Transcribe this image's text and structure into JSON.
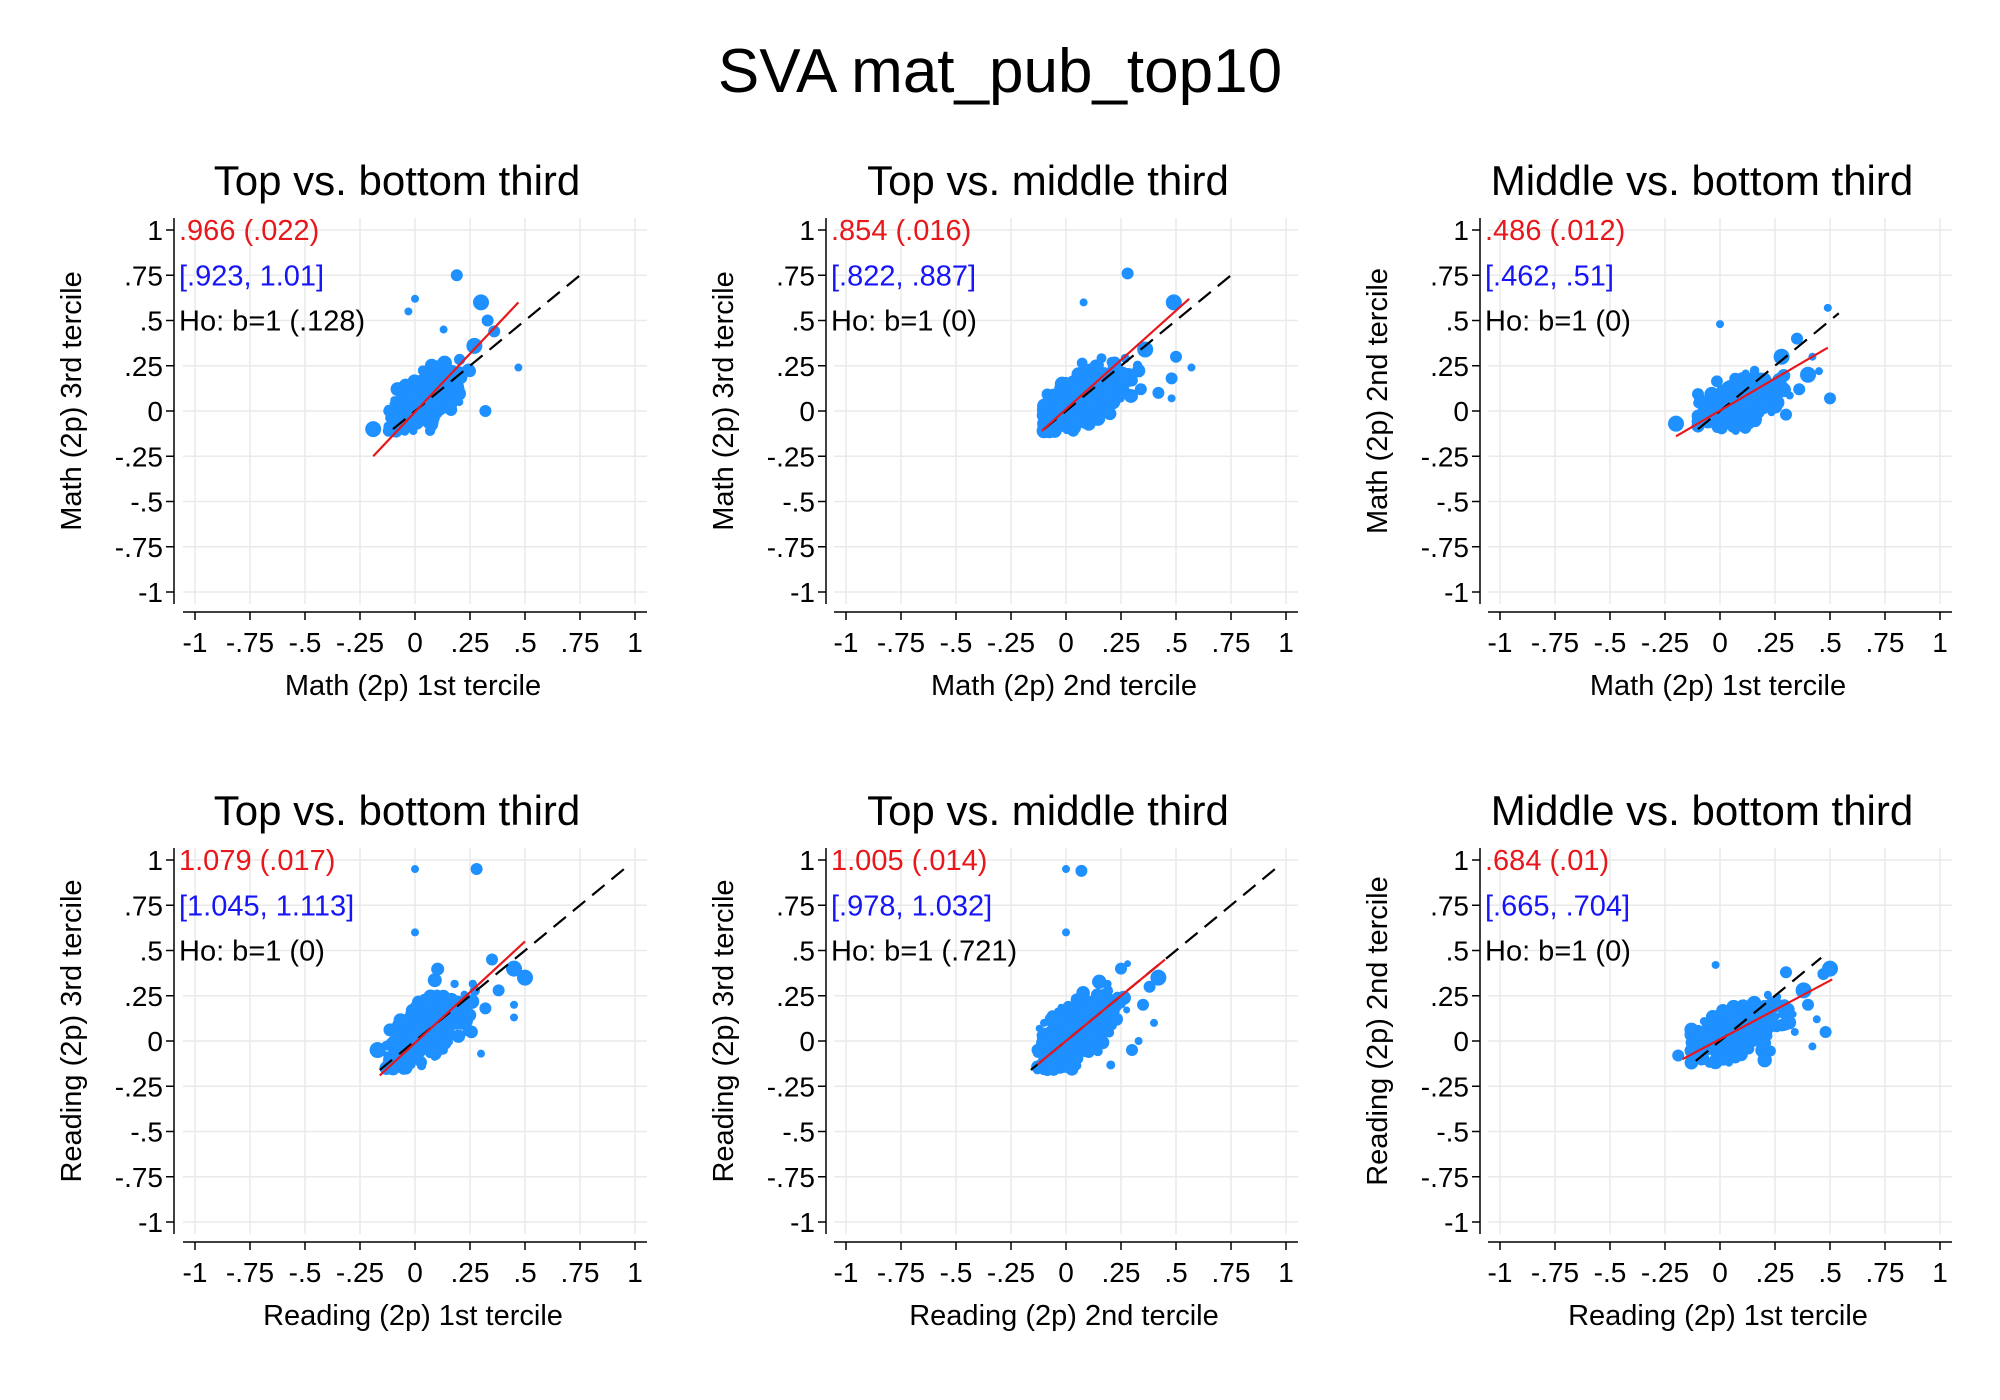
{
  "title": "SVA mat_pub_top10",
  "colors": {
    "points": "#1E90FF",
    "fit_line": "#E8171B",
    "reference_line": "#000000",
    "estimate_text": "#E8171B",
    "ci_text": "#1515F5",
    "test_text": "#000000",
    "grid": "#EAEAEA",
    "axis": "#000000"
  },
  "chart_data": [
    {
      "type": "scatter",
      "panel": "math-top-vs-bottom",
      "title": "Top vs. bottom third",
      "xlabel": "Math (2p) 1st tercile",
      "ylabel": "Math (2p) 3rd tercile",
      "xlim": [
        -1,
        1
      ],
      "ylim": [
        -1,
        1
      ],
      "ticks": [
        -1,
        -0.75,
        -0.5,
        -0.25,
        0,
        0.25,
        0.5,
        0.75,
        1
      ],
      "tick_labels": [
        "-1",
        "-.75",
        "-.5",
        "-.25",
        "0",
        ".25",
        ".5",
        ".75",
        "1"
      ],
      "grid": true,
      "estimate": ".966 (.022)",
      "ci": "[.923, 1.01]",
      "test": "Ho: b=1 (.128)",
      "slope": 0.966,
      "fit_line": {
        "x": [
          -0.19,
          0.47
        ],
        "y": [
          -0.25,
          0.6
        ]
      },
      "reference_line": {
        "x": [
          -0.1,
          0.76
        ]
      },
      "cloud": {
        "cx": 0.05,
        "cy": 0.07,
        "sx": 0.07,
        "sy": 0.08,
        "rho": 0.6,
        "n": 650,
        "xmin": -0.12,
        "xmax": 0.32,
        "ymin": -0.11,
        "ymax": 0.5
      },
      "outliers": [
        [
          -0.19,
          -0.1,
          3
        ],
        [
          0.19,
          0.75,
          2
        ],
        [
          0.3,
          0.6,
          3
        ],
        [
          0.47,
          0.24,
          1
        ],
        [
          0.32,
          0.0,
          2
        ],
        [
          0.27,
          0.36,
          3
        ],
        [
          0.36,
          0.44,
          2
        ],
        [
          -0.03,
          0.55,
          1
        ],
        [
          0.25,
          0.22,
          2
        ],
        [
          0.33,
          0.5,
          2
        ],
        [
          0.0,
          0.62,
          1
        ],
        [
          0.13,
          0.45,
          1
        ]
      ]
    },
    {
      "type": "scatter",
      "panel": "math-top-vs-middle",
      "title": "Top vs. middle third",
      "xlabel": "Math (2p) 2nd tercile",
      "ylabel": "Math (2p) 3rd tercile",
      "xlim": [
        -1,
        1
      ],
      "ylim": [
        -1,
        1
      ],
      "ticks": [
        -1,
        -0.75,
        -0.5,
        -0.25,
        0,
        0.25,
        0.5,
        0.75,
        1
      ],
      "tick_labels": [
        "-1",
        "-.75",
        "-.5",
        "-.25",
        "0",
        ".25",
        ".5",
        ".75",
        "1"
      ],
      "grid": true,
      "estimate": ".854 (.016)",
      "ci": "[.822, .887]",
      "test": "Ho: b=1 (0)",
      "slope": 0.854,
      "fit_line": {
        "x": [
          -0.11,
          0.56
        ],
        "y": [
          -0.11,
          0.62
        ]
      },
      "reference_line": {
        "x": [
          -0.1,
          0.76
        ]
      },
      "cloud": {
        "cx": 0.07,
        "cy": 0.06,
        "sx": 0.09,
        "sy": 0.08,
        "rho": 0.65,
        "n": 750,
        "xmin": -0.1,
        "xmax": 0.33,
        "ymin": -0.11,
        "ymax": 0.42
      },
      "outliers": [
        [
          0.28,
          0.76,
          2
        ],
        [
          0.49,
          0.6,
          3
        ],
        [
          0.57,
          0.24,
          1
        ],
        [
          0.5,
          0.3,
          2
        ],
        [
          0.48,
          0.18,
          2
        ],
        [
          0.36,
          0.34,
          3
        ],
        [
          0.42,
          0.1,
          2
        ],
        [
          0.08,
          0.6,
          1
        ],
        [
          0.48,
          0.07,
          1
        ],
        [
          0.34,
          0.12,
          2
        ],
        [
          0.27,
          0.1,
          1
        ],
        [
          0.25,
          0.22,
          1
        ]
      ]
    },
    {
      "type": "scatter",
      "panel": "math-middle-vs-bottom",
      "title": "Middle vs. bottom third",
      "xlabel": "Math (2p) 1st tercile",
      "ylabel": "Math (2p) 2nd tercile",
      "xlim": [
        -1,
        1
      ],
      "ylim": [
        -1,
        1
      ],
      "ticks": [
        -1,
        -0.75,
        -0.5,
        -0.25,
        0,
        0.25,
        0.5,
        0.75,
        1
      ],
      "tick_labels": [
        "-1",
        "-.75",
        "-.5",
        "-.25",
        "0",
        ".25",
        ".5",
        ".75",
        "1"
      ],
      "grid": true,
      "estimate": ".486 (.012)",
      "ci": "[.462, .51]",
      "test": "Ho: b=1 (0)",
      "slope": 0.486,
      "fit_line": {
        "x": [
          -0.2,
          0.49
        ],
        "y": [
          -0.14,
          0.35
        ]
      },
      "reference_line": {
        "x": [
          -0.1,
          0.54
        ]
      },
      "cloud": {
        "cx": 0.08,
        "cy": 0.04,
        "sx": 0.08,
        "sy": 0.06,
        "rho": 0.5,
        "n": 600,
        "xmin": -0.1,
        "xmax": 0.35,
        "ymin": -0.11,
        "ymax": 0.3
      },
      "outliers": [
        [
          -0.2,
          -0.07,
          3
        ],
        [
          0.35,
          0.4,
          2
        ],
        [
          0.49,
          0.57,
          1
        ],
        [
          0.5,
          0.07,
          2
        ],
        [
          0.4,
          0.2,
          3
        ],
        [
          0.28,
          0.3,
          3
        ],
        [
          0.36,
          0.12,
          2
        ],
        [
          0.45,
          0.22,
          1
        ],
        [
          0.0,
          0.48,
          1
        ],
        [
          0.42,
          0.3,
          1
        ],
        [
          0.3,
          -0.02,
          2
        ]
      ]
    },
    {
      "type": "scatter",
      "panel": "reading-top-vs-bottom",
      "title": "Top vs. bottom third",
      "xlabel": "Reading (2p) 1st tercile",
      "ylabel": "Reading (2p) 3rd tercile",
      "xlim": [
        -1,
        1
      ],
      "ylim": [
        -1,
        1
      ],
      "ticks": [
        -1,
        -0.75,
        -0.5,
        -0.25,
        0,
        0.25,
        0.5,
        0.75,
        1
      ],
      "tick_labels": [
        "-1",
        "-.75",
        "-.5",
        "-.25",
        "0",
        ".25",
        ".5",
        ".75",
        "1"
      ],
      "grid": true,
      "estimate": "1.079 (.017)",
      "ci": "[1.045, 1.113]",
      "test": "Ho: b=1 (0)",
      "slope": 1.079,
      "fit_line": {
        "x": [
          -0.16,
          0.5
        ],
        "y": [
          -0.19,
          0.55
        ]
      },
      "reference_line": {
        "x": [
          -0.16,
          0.96
        ]
      },
      "cloud": {
        "cx": 0.06,
        "cy": 0.07,
        "sx": 0.08,
        "sy": 0.09,
        "rho": 0.65,
        "n": 750,
        "xmin": -0.13,
        "xmax": 0.33,
        "ymin": -0.15,
        "ymax": 0.52
      },
      "outliers": [
        [
          0.28,
          0.95,
          2
        ],
        [
          0.0,
          0.95,
          1
        ],
        [
          -0.17,
          -0.05,
          3
        ],
        [
          0.5,
          0.35,
          3
        ],
        [
          0.45,
          0.4,
          3
        ],
        [
          0.45,
          0.2,
          1
        ],
        [
          0.32,
          0.18,
          2
        ],
        [
          0.38,
          0.28,
          2
        ],
        [
          0.3,
          -0.07,
          1
        ],
        [
          0.0,
          0.6,
          1
        ],
        [
          0.35,
          0.45,
          2
        ],
        [
          0.45,
          0.13,
          1
        ]
      ]
    },
    {
      "type": "scatter",
      "panel": "reading-top-vs-middle",
      "title": "Top vs. middle third",
      "xlabel": "Reading (2p) 2nd tercile",
      "ylabel": "Reading (2p) 3rd tercile",
      "xlim": [
        -1,
        1
      ],
      "ylim": [
        -1,
        1
      ],
      "ticks": [
        -1,
        -0.75,
        -0.5,
        -0.25,
        0,
        0.25,
        0.5,
        0.75,
        1
      ],
      "tick_labels": [
        "-1",
        "-.75",
        "-.5",
        "-.25",
        "0",
        ".25",
        ".5",
        ".75",
        "1"
      ],
      "grid": true,
      "estimate": "1.005 (.014)",
      "ci": "[.978, 1.032]",
      "test": "Ho: b=1 (.721)",
      "slope": 1.005,
      "fit_line": {
        "x": [
          -0.13,
          0.45
        ],
        "y": [
          -0.13,
          0.45
        ]
      },
      "reference_line": {
        "x": [
          -0.16,
          0.96
        ]
      },
      "cloud": {
        "cx": 0.05,
        "cy": 0.06,
        "sx": 0.08,
        "sy": 0.09,
        "rho": 0.65,
        "n": 700,
        "xmin": -0.13,
        "xmax": 0.3,
        "ymin": -0.16,
        "ymax": 0.48
      },
      "outliers": [
        [
          0.07,
          0.94,
          2
        ],
        [
          0.0,
          0.95,
          1
        ],
        [
          0.42,
          0.35,
          3
        ],
        [
          0.38,
          0.3,
          2
        ],
        [
          0.3,
          -0.05,
          2
        ],
        [
          0.35,
          0.2,
          2
        ],
        [
          0.4,
          0.1,
          1
        ],
        [
          0.25,
          0.4,
          2
        ],
        [
          0.0,
          0.6,
          1
        ],
        [
          0.33,
          0.0,
          1
        ],
        [
          -0.1,
          0.1,
          1
        ]
      ]
    },
    {
      "type": "scatter",
      "panel": "reading-middle-vs-bottom",
      "title": "Middle vs. bottom third",
      "xlabel": "Reading (2p) 1st tercile",
      "ylabel": "Reading (2p) 2nd tercile",
      "xlim": [
        -1,
        1
      ],
      "ylim": [
        -1,
        1
      ],
      "ticks": [
        -1,
        -0.75,
        -0.5,
        -0.25,
        0,
        0.25,
        0.5,
        0.75,
        1
      ],
      "tick_labels": [
        "-1",
        "-.75",
        "-.5",
        "-.25",
        "0",
        ".25",
        ".5",
        ".75",
        "1"
      ],
      "grid": true,
      "estimate": ".684 (.01)",
      "ci": "[.665, .704]",
      "test": "Ho: b=1 (0)",
      "slope": 0.684,
      "fit_line": {
        "x": [
          -0.17,
          0.51
        ],
        "y": [
          -0.1,
          0.34
        ]
      },
      "reference_line": {
        "x": [
          -0.11,
          0.46
        ]
      },
      "cloud": {
        "cx": 0.09,
        "cy": 0.06,
        "sx": 0.09,
        "sy": 0.07,
        "rho": 0.55,
        "n": 650,
        "xmin": -0.13,
        "xmax": 0.38,
        "ymin": -0.12,
        "ymax": 0.4
      },
      "outliers": [
        [
          -0.19,
          -0.08,
          2
        ],
        [
          0.5,
          0.4,
          3
        ],
        [
          0.47,
          0.37,
          2
        ],
        [
          0.48,
          0.05,
          2
        ],
        [
          0.42,
          -0.03,
          1
        ],
        [
          0.4,
          0.2,
          2
        ],
        [
          0.38,
          0.28,
          3
        ],
        [
          0.44,
          0.12,
          1
        ],
        [
          -0.02,
          0.42,
          1
        ],
        [
          0.3,
          0.38,
          2
        ],
        [
          0.34,
          0.05,
          1
        ]
      ]
    }
  ]
}
